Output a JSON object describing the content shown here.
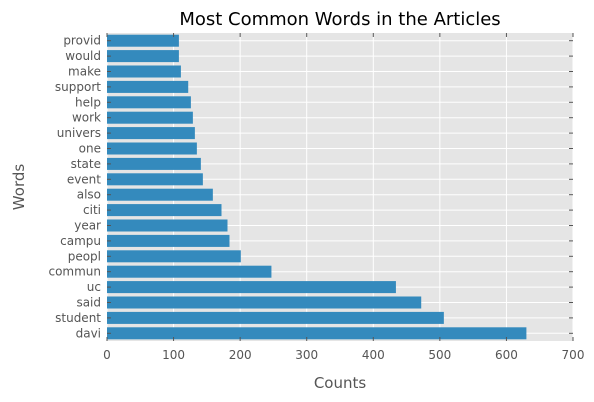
{
  "chart_data": {
    "type": "bar",
    "orientation": "horizontal",
    "title": "Most Common Words in the Articles",
    "xlabel": "Counts",
    "ylabel": "Words",
    "xlim": [
      0,
      700
    ],
    "xticks": [
      "0",
      "100",
      "200",
      "300",
      "400",
      "500",
      "600",
      "700"
    ],
    "grid": true,
    "categories": [
      "davi",
      "student",
      "said",
      "uc",
      "commun",
      "peopl",
      "campu",
      "year",
      "citi",
      "also",
      "event",
      "state",
      "one",
      "univers",
      "work",
      "help",
      "support",
      "make",
      "would",
      "provid"
    ],
    "values": [
      630,
      506,
      472,
      434,
      247,
      201,
      184,
      181,
      172,
      159,
      144,
      141,
      135,
      132,
      129,
      126,
      122,
      111,
      108,
      108
    ],
    "bar_color": "#348ABD",
    "background_color": "#E5E5E5",
    "grid_color": "#FFFFFF"
  }
}
